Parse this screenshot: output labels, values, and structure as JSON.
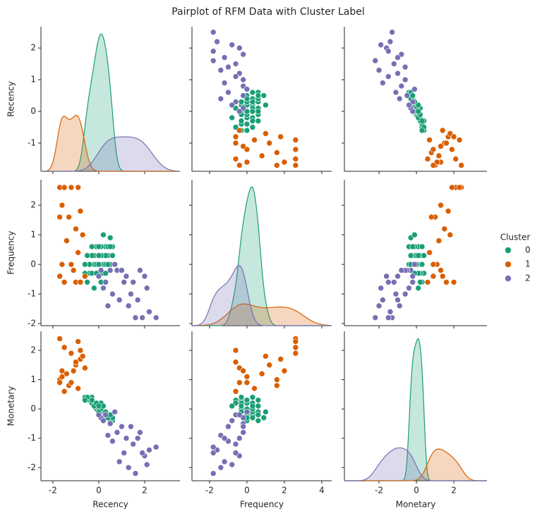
{
  "chart_data": {
    "type": "pairplot",
    "title": "Pairplot of RFM Data with Cluster Label",
    "legend_title": "Cluster",
    "legend": "right",
    "variables": [
      {
        "name": "Recency",
        "xlim": [
          -2.52,
          3.54
        ],
        "xticks": [
          -2,
          0,
          2
        ],
        "ylim": [
          -1.89,
          2.67
        ],
        "yticks": [
          -1,
          0,
          1,
          2
        ]
      },
      {
        "name": "Frequency",
        "xlim": [
          -2.94,
          4.53
        ],
        "xticks": [
          -2,
          0,
          2,
          4
        ],
        "ylim": [
          -2.07,
          2.86
        ],
        "yticks": [
          -2,
          -1,
          0,
          1,
          2
        ]
      },
      {
        "name": "Monetary",
        "xlim": [
          -3.85,
          3.77
        ],
        "xticks": [
          -2,
          0,
          2
        ],
        "ylim": [
          -2.45,
          2.65
        ],
        "yticks": [
          -2,
          -1,
          0,
          1,
          2
        ]
      }
    ],
    "series": [
      {
        "name": "0",
        "color": "#1b9e77",
        "values": [
          [
            0.1,
            0.3,
            -0.2,
            0.5,
            0.0,
            -0.4,
            0.2,
            0.6,
            -0.1,
            0.4,
            -0.3,
            0.1,
            -0.5,
            0.2,
            -0.2,
            0.0,
            0.3,
            -0.6,
            0.5,
            -0.1,
            0.1,
            0.4,
            -0.4,
            0.2,
            0.0,
            -0.3,
            0.6,
            -0.2,
            0.3,
            -0.5,
            0.1,
            0.0,
            -0.1,
            0.4,
            0.2,
            -0.3,
            0.5,
            -0.6,
            0.3,
            0.0
          ],
          [
            0.3,
            0.6,
            0.0,
            0.9,
            0.3,
            -0.3,
            0.3,
            0.6,
            0.0,
            0.3,
            -0.3,
            0.6,
            -0.6,
            0.0,
            0.3,
            -0.3,
            0.3,
            -0.3,
            0.0,
            0.6,
            -0.6,
            0.6,
            0.0,
            1.0,
            0.0,
            0.3,
            0.3,
            -0.8,
            0.0,
            0.3,
            0.3,
            0.6,
            -0.3,
            0.0,
            -0.3,
            0.6,
            0.6,
            0.0,
            -0.3,
            0.3
          ],
          [
            0.0,
            -0.2,
            0.2,
            -0.3,
            0.1,
            0.3,
            -0.1,
            -0.4,
            0.0,
            -0.2,
            0.4,
            0.1,
            0.3,
            -0.3,
            0.2,
            0.0,
            -0.1,
            0.4,
            -0.4,
            0.1,
            0.2,
            -0.2,
            0.3,
            -0.1,
            0.0,
            0.2,
            -0.3,
            0.1,
            -0.2,
            0.4,
            0.0,
            -0.1,
            0.2,
            -0.3,
            0.1,
            0.3,
            -0.2,
            0.3,
            -0.1,
            0.1
          ]
        ]
      },
      {
        "name": "1",
        "color": "#d95f02",
        "values": [
          [
            -1.7,
            -1.5,
            -1.2,
            -0.9,
            -1.6,
            -0.8,
            -1.7,
            -1.3,
            -1.0,
            -0.7,
            -1.4,
            -0.9,
            -1.6,
            -1.2,
            -0.6,
            -1.5,
            -1.0,
            -1.7,
            -0.8,
            -1.1
          ],
          [
            2.6,
            2.6,
            2.6,
            2.6,
            2.0,
            1.8,
            1.6,
            1.6,
            1.2,
            1.0,
            0.8,
            0.4,
            0.0,
            0.0,
            -0.4,
            -0.6,
            -0.6,
            -0.4,
            -0.6,
            -0.2
          ],
          [
            2.4,
            2.1,
            1.9,
            2.3,
            1.3,
            1.7,
            1.0,
            0.8,
            1.5,
            1.8,
            1.2,
            0.7,
            1.1,
            0.9,
            1.4,
            0.6,
            1.6,
            0.9,
            2.0,
            1.3
          ]
        ]
      },
      {
        "name": "2",
        "color": "#7570b3",
        "values": [
          [
            0.1,
            0.5,
            0.8,
            1.0,
            1.2,
            1.5,
            1.8,
            2.0,
            2.2,
            2.5,
            0.3,
            0.6,
            0.9,
            1.3,
            1.6,
            1.9,
            0.2,
            0.4,
            0.7,
            1.1,
            1.4,
            2.1,
            0.0,
            1.7
          ],
          [
            -0.2,
            -0.2,
            -0.2,
            -0.2,
            -0.4,
            -0.6,
            -0.2,
            -0.4,
            -1.6,
            -1.8,
            -0.6,
            -1.0,
            -1.2,
            -1.4,
            -1.8,
            -1.8,
            -0.8,
            -1.4,
            0.0,
            -0.6,
            -1.0,
            -0.8,
            -0.4,
            -1.2
          ],
          [
            -0.3,
            -0.5,
            -0.8,
            -0.6,
            -1.0,
            -1.2,
            -0.8,
            -1.6,
            -1.4,
            -1.3,
            -0.2,
            -1.1,
            -1.8,
            -2.0,
            -2.2,
            -1.5,
            -0.4,
            -0.9,
            -0.1,
            -1.5,
            -0.6,
            -1.9,
            -0.2,
            -1.0
          ]
        ]
      }
    ]
  }
}
